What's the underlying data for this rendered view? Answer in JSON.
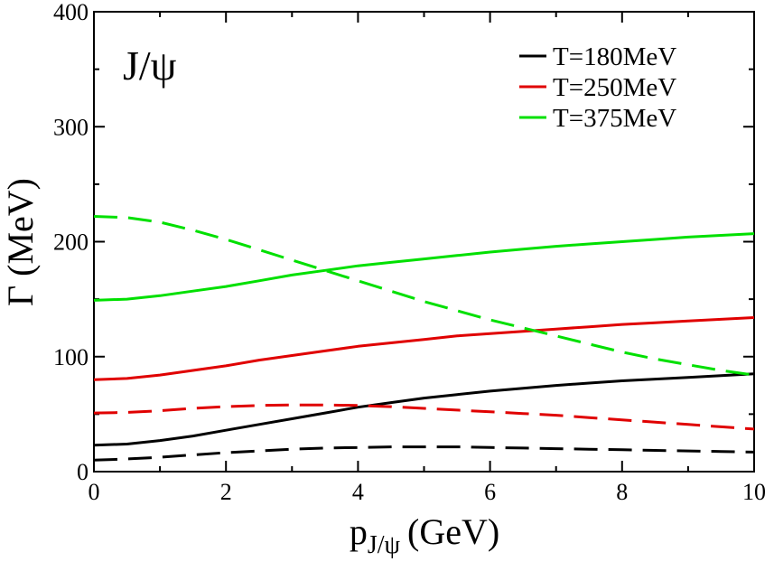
{
  "chart_data": {
    "type": "line",
    "title": "",
    "annotation": "J/ψ",
    "xlabel": {
      "main": "p",
      "sub": "J/ψ",
      "unit": "(GeV)"
    },
    "ylabel": "Γ (MeV)",
    "xlim": [
      0,
      10
    ],
    "ylim": [
      0,
      400
    ],
    "xticks": [
      0,
      2,
      4,
      6,
      8,
      10
    ],
    "yticks": [
      0,
      100,
      200,
      300,
      400
    ],
    "grid": false,
    "legend_position": "top-right",
    "legend": [
      {
        "label": "T=180MeV",
        "color": "#000000"
      },
      {
        "label": "T=250MeV",
        "color": "#e00000"
      },
      {
        "label": "T=375MeV",
        "color": "#00e000"
      }
    ],
    "series": [
      {
        "name": "T=180MeV",
        "style": "solid",
        "color": "#000000",
        "x": [
          0,
          0.5,
          1,
          1.5,
          2,
          2.5,
          3,
          3.5,
          4,
          4.5,
          5,
          5.5,
          6,
          6.5,
          7,
          7.5,
          8,
          8.5,
          9,
          9.5,
          10
        ],
        "y": [
          23,
          24,
          27,
          31,
          36,
          41,
          46,
          51,
          56,
          60,
          64,
          67,
          70,
          72.5,
          75,
          77,
          79,
          80.5,
          82,
          83.5,
          85
        ]
      },
      {
        "name": "T=180MeV",
        "style": "dashed",
        "color": "#000000",
        "x": [
          0,
          0.5,
          1,
          1.5,
          2,
          2.5,
          3,
          3.5,
          4,
          4.5,
          5,
          5.5,
          6,
          6.5,
          7,
          7.5,
          8,
          8.5,
          9,
          9.5,
          10
        ],
        "y": [
          10,
          11,
          12.5,
          14.5,
          16.5,
          18,
          19.5,
          20.5,
          21,
          21.5,
          21.5,
          21.5,
          21,
          20.5,
          20,
          19.5,
          19,
          18.5,
          18,
          17.5,
          17
        ]
      },
      {
        "name": "T=250MeV",
        "style": "solid",
        "color": "#e00000",
        "x": [
          0,
          0.5,
          1,
          1.5,
          2,
          2.5,
          3,
          3.5,
          4,
          4.5,
          5,
          5.5,
          6,
          6.5,
          7,
          7.5,
          8,
          8.5,
          9,
          9.5,
          10
        ],
        "y": [
          80,
          81,
          84,
          88,
          92,
          97,
          101,
          105,
          109,
          112,
          115,
          118,
          120,
          122,
          124,
          126,
          128,
          129.5,
          131,
          132.5,
          134
        ]
      },
      {
        "name": "T=250MeV",
        "style": "dashed",
        "color": "#e00000",
        "x": [
          0,
          0.5,
          1,
          1.5,
          2,
          2.5,
          3,
          3.5,
          4,
          4.5,
          5,
          5.5,
          6,
          6.5,
          7,
          7.5,
          8,
          8.5,
          9,
          9.5,
          10
        ],
        "y": [
          51,
          51.5,
          53,
          55,
          56.5,
          57.5,
          58,
          58,
          57.5,
          56.5,
          55,
          53.5,
          52,
          50.5,
          49,
          47,
          45,
          43,
          41,
          39,
          37
        ]
      },
      {
        "name": "T=375MeV",
        "style": "solid",
        "color": "#00e000",
        "x": [
          0,
          0.5,
          1,
          1.5,
          2,
          2.5,
          3,
          3.5,
          4,
          4.5,
          5,
          5.5,
          6,
          6.5,
          7,
          7.5,
          8,
          8.5,
          9,
          9.5,
          10
        ],
        "y": [
          149,
          150,
          153,
          157,
          161,
          166,
          171,
          175,
          179,
          182,
          185,
          188,
          191,
          193.5,
          196,
          198,
          200,
          202,
          204,
          205.5,
          207
        ]
      },
      {
        "name": "T=375MeV",
        "style": "dashed",
        "color": "#00e000",
        "x": [
          0,
          0.5,
          1,
          1.5,
          2,
          2.5,
          3,
          3.5,
          4,
          4.5,
          5,
          5.5,
          6,
          6.5,
          7,
          7.5,
          8,
          8.5,
          9,
          9.5,
          10
        ],
        "y": [
          222,
          221,
          217,
          210,
          202,
          193,
          184,
          175,
          166,
          157,
          148,
          140,
          132,
          125,
          118,
          111,
          104,
          98,
          93,
          88,
          84
        ]
      }
    ]
  }
}
